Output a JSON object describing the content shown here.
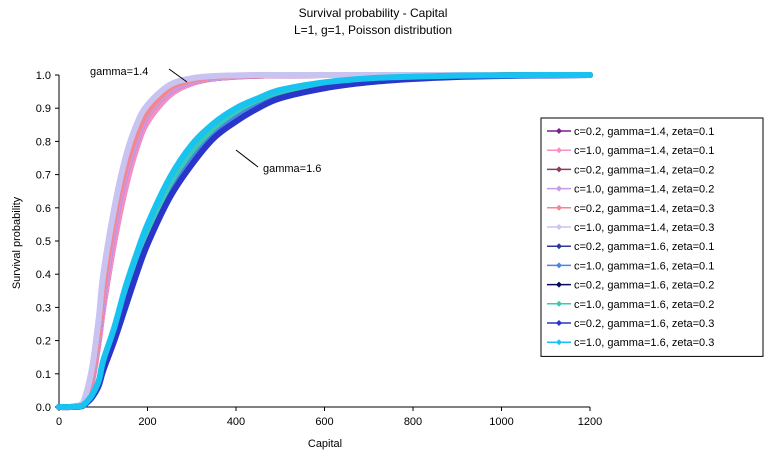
{
  "chart_data": {
    "type": "line",
    "title": "Survival probability - Capital",
    "subtitle": "L=1, g=1, Poisson distribution",
    "xlabel": "Capital",
    "ylabel": "Survival probability",
    "xlim": [
      0,
      1200
    ],
    "ylim": [
      0,
      1
    ],
    "x_ticks": [
      "0",
      "200",
      "400",
      "600",
      "800",
      "1000",
      "1200"
    ],
    "y_ticks": [
      "0.0",
      "0.1",
      "0.2",
      "0.3",
      "0.4",
      "0.5",
      "0.6",
      "0.7",
      "0.8",
      "0.9",
      "1.0"
    ],
    "grid": false,
    "legend_position": "right",
    "annotations": [
      {
        "text": "gamma=1.4"
      },
      {
        "text": "gamma=1.6"
      }
    ],
    "x": [
      0,
      25,
      50,
      60,
      75,
      90,
      100,
      125,
      150,
      175,
      200,
      250,
      300,
      350,
      400,
      450,
      500,
      600,
      700,
      800,
      900,
      1000,
      1100,
      1200
    ],
    "series": [
      {
        "name": "c=0.2, gamma=1.4, zeta=0.1",
        "color": "#7a1f8c",
        "values": [
          0,
          0,
          0.005,
          0.02,
          0.08,
          0.2,
          0.3,
          0.5,
          0.66,
          0.78,
          0.86,
          0.94,
          0.975,
          0.99,
          0.995,
          0.998,
          0.999,
          1,
          1,
          1,
          null,
          null,
          null,
          null
        ]
      },
      {
        "name": "c=1.0, gamma=1.4, zeta=0.1",
        "color": "#f78fc4",
        "values": [
          0,
          0,
          0.005,
          0.02,
          0.08,
          0.2,
          0.3,
          0.5,
          0.66,
          0.78,
          0.86,
          0.94,
          0.975,
          0.99,
          0.995,
          0.998,
          0.999,
          1,
          1,
          1,
          null,
          null,
          null,
          null
        ]
      },
      {
        "name": "c=0.2, gamma=1.4, zeta=0.2",
        "color": "#8b3a62",
        "values": [
          0,
          0,
          0.006,
          0.025,
          0.09,
          0.22,
          0.33,
          0.54,
          0.7,
          0.8,
          0.88,
          0.95,
          0.98,
          0.99,
          0.996,
          0.998,
          0.999,
          1,
          1,
          1,
          null,
          null,
          null,
          null
        ]
      },
      {
        "name": "c=1.0, gamma=1.4, zeta=0.2",
        "color": "#c79be6",
        "values": [
          0,
          0,
          0.006,
          0.025,
          0.09,
          0.22,
          0.33,
          0.54,
          0.7,
          0.8,
          0.88,
          0.95,
          0.98,
          0.99,
          0.996,
          0.998,
          0.999,
          1,
          1,
          1,
          null,
          null,
          null,
          null
        ]
      },
      {
        "name": "c=0.2, gamma=1.4, zeta=0.3",
        "color": "#f4868f",
        "values": [
          0,
          0,
          0.007,
          0.03,
          0.1,
          0.24,
          0.36,
          0.57,
          0.72,
          0.82,
          0.89,
          0.96,
          0.985,
          0.995,
          0.998,
          0.999,
          1,
          1,
          1,
          1,
          null,
          null,
          null,
          null
        ]
      },
      {
        "name": "c=1.0, gamma=1.4, zeta=0.3",
        "color": "#c9c3f2",
        "values": [
          0,
          0,
          0.008,
          0.035,
          0.12,
          0.27,
          0.4,
          0.6,
          0.75,
          0.85,
          0.91,
          0.97,
          0.99,
          0.997,
          0.999,
          1,
          1,
          1,
          1,
          1,
          1,
          1,
          1,
          1
        ]
      },
      {
        "name": "c=0.2, gamma=1.6, zeta=0.1",
        "color": "#2e3a99",
        "values": [
          0,
          0,
          0.002,
          0.01,
          0.03,
          0.07,
          0.12,
          0.22,
          0.33,
          0.43,
          0.52,
          0.66,
          0.76,
          0.83,
          0.88,
          0.92,
          0.945,
          0.97,
          0.985,
          0.993,
          0.996,
          0.998,
          0.999,
          1
        ]
      },
      {
        "name": "c=1.0, gamma=1.6, zeta=0.1",
        "color": "#4a86e8",
        "values": [
          0,
          0,
          0.002,
          0.01,
          0.03,
          0.07,
          0.12,
          0.22,
          0.33,
          0.43,
          0.52,
          0.66,
          0.76,
          0.83,
          0.88,
          0.92,
          0.945,
          0.97,
          0.985,
          0.993,
          0.996,
          0.998,
          0.999,
          1
        ]
      },
      {
        "name": "c=0.2, gamma=1.6, zeta=0.2",
        "color": "#0b0b5c",
        "values": [
          0,
          0,
          0.002,
          0.011,
          0.035,
          0.075,
          0.13,
          0.23,
          0.34,
          0.44,
          0.53,
          0.67,
          0.77,
          0.84,
          0.89,
          0.925,
          0.95,
          0.975,
          0.988,
          0.994,
          0.997,
          0.999,
          1,
          1
        ]
      },
      {
        "name": "c=1.0, gamma=1.6, zeta=0.2",
        "color": "#3cc7b9",
        "values": [
          0,
          0,
          0.002,
          0.011,
          0.035,
          0.075,
          0.13,
          0.23,
          0.34,
          0.44,
          0.53,
          0.67,
          0.77,
          0.84,
          0.89,
          0.925,
          0.95,
          0.975,
          0.988,
          0.994,
          0.997,
          0.999,
          1,
          1
        ]
      },
      {
        "name": "c=0.2, gamma=1.6, zeta=0.3",
        "color": "#2a35c9",
        "values": [
          0,
          0,
          0.002,
          0.01,
          0.03,
          0.065,
          0.11,
          0.2,
          0.3,
          0.4,
          0.49,
          0.63,
          0.73,
          0.81,
          0.86,
          0.9,
          0.93,
          0.96,
          0.978,
          0.988,
          0.994,
          0.997,
          0.999,
          1
        ]
      },
      {
        "name": "c=1.0, gamma=1.6, zeta=0.3",
        "color": "#19c3f0",
        "values": [
          0,
          0,
          0.003,
          0.012,
          0.037,
          0.08,
          0.14,
          0.24,
          0.36,
          0.46,
          0.55,
          0.69,
          0.79,
          0.855,
          0.9,
          0.93,
          0.955,
          0.978,
          0.99,
          0.995,
          0.998,
          0.999,
          1,
          1
        ]
      }
    ]
  }
}
